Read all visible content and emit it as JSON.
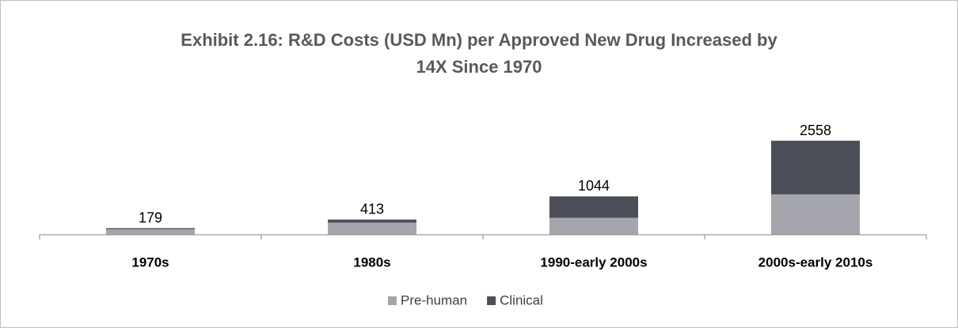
{
  "chart_data": {
    "type": "stacked_bar",
    "title": [
      "Exhibit 2.16: R&D Costs (USD Mn) per Approved New Drug Increased by",
      "14X Since 1970"
    ],
    "categories": [
      "1970s",
      "1980s",
      "1990-early 2000s",
      "2000s-early 2010s"
    ],
    "series": [
      {
        "name": "Pre-human",
        "color": "#a5a5ad",
        "values": [
          150,
          330,
          460,
          1098
        ]
      },
      {
        "name": "Clinical",
        "color": "#4d4f58",
        "values": [
          29,
          83,
          584,
          1460
        ]
      }
    ],
    "totals": [
      179,
      413,
      1044,
      2558
    ],
    "ylim": [
      0,
      4236
    ],
    "legend": "bottom"
  }
}
